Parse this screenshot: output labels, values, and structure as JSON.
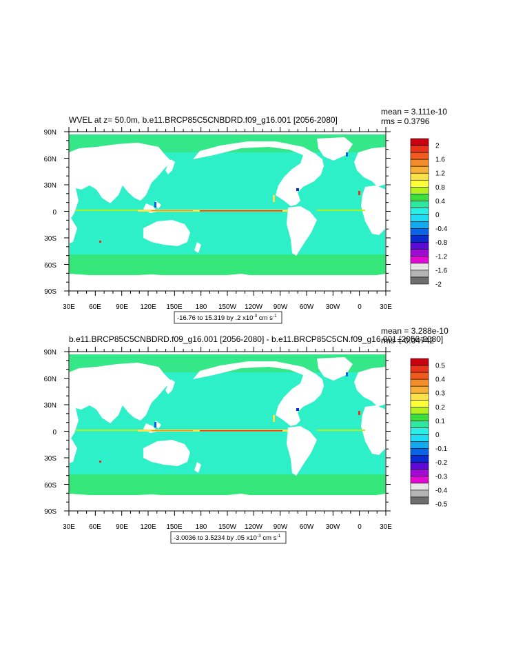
{
  "panels": [
    {
      "title": "WVEL at z=  50.0m, b.e11.BRCP85C5CNBDRD.f09_g16.001 [2056-2080]",
      "mean": "mean = 3.111e-10",
      "rms": "rms = 0.3796",
      "range_prefix": "-16.76 to 15.319 by .2 x10",
      "range_exp": "-3",
      "range_unit_prefix": " cm s",
      "range_unit_exp": "-1",
      "colorbar_labels": [
        "2",
        "1.6",
        "1.2",
        "0.8",
        "0.4",
        "0",
        "-0.4",
        "-0.8",
        "-1.2",
        "-1.6",
        "-2"
      ]
    },
    {
      "title": "b.e11.BRCP85C5CNBDRD.f09_g16.001 [2056-2080] - b.e11.BRCP85C5CN.f09_g16.001 [2056-2080]",
      "mean": "mean = 3.288e-10",
      "rms": "rms = 0.04742",
      "range_prefix": "-3.0036 to 3.5234 by .05 x10",
      "range_exp": "-3",
      "range_unit_prefix": " cm s",
      "range_unit_exp": "-1",
      "colorbar_labels": [
        "0.5",
        "0.4",
        "0.3",
        "0.2",
        "0.1",
        "0",
        "-0.1",
        "-0.2",
        "-0.3",
        "-0.4",
        "-0.5"
      ]
    }
  ],
  "lat_labels": [
    "90N",
    "60N",
    "30N",
    "0",
    "30S",
    "60S",
    "90S"
  ],
  "lon_labels": [
    "30E",
    "60E",
    "90E",
    "120E",
    "150E",
    "180",
    "150W",
    "120W",
    "90W",
    "60W",
    "30W",
    "0",
    "30E"
  ],
  "colorbar_colors": [
    "#c8000f",
    "#e8331a",
    "#f05a1e",
    "#f48c2a",
    "#f8b03a",
    "#fbe14a",
    "#ffff3a",
    "#b4f01e",
    "#3cde3c",
    "#2ee8a0",
    "#28f0e6",
    "#1edcf5",
    "#14aaf0",
    "#0a64e6",
    "#0a2ad2",
    "#5a0ad2",
    "#a00ad2",
    "#e00ad2",
    "#e6e6e6",
    "#b4b4b4",
    "#6e6e6e"
  ],
  "ocean_color": "#2ef0c8",
  "land_color": "#ffffff"
}
